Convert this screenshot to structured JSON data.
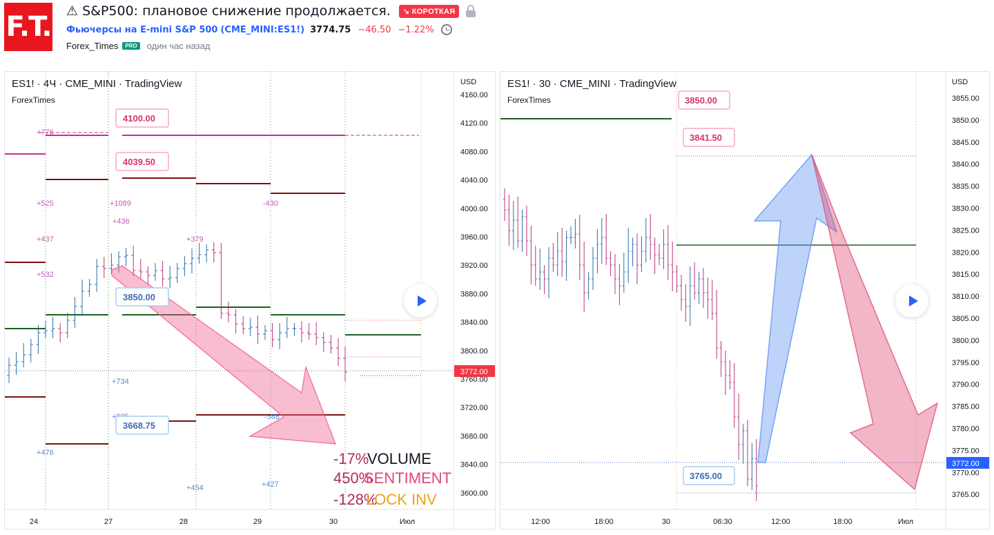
{
  "header": {
    "logo": "F.T.",
    "title": "⚠ S&P500: плановое снижение продолжается.",
    "badge": "↘ КОРОТКАЯ",
    "symbol_name": "Фьючерсы на E-mini S&P 500",
    "symbol_code": "(CME_MINI:ES1!)",
    "price": "3774.75",
    "change": "−46.50",
    "change_pct": "−1.22%",
    "author": "Forex_Times",
    "pro": "PRO",
    "time_ago": "один час назад"
  },
  "left_chart": {
    "title": "ES1! · 4Ч · CME_MINI · TradingView",
    "subtitle": "ForexTimes",
    "currency": "USD",
    "price_ticks": [
      "4160.00",
      "4120.00",
      "4080.00",
      "4040.00",
      "4000.00",
      "3960.00",
      "3920.00",
      "3880.00",
      "3840.00",
      "3800.00",
      "3760.00",
      "3720.00",
      "3680.00",
      "3640.00",
      "3600.00"
    ],
    "last_price": "3772.00",
    "time_ticks": [
      "24",
      "27",
      "28",
      "29",
      "30",
      "Июл"
    ],
    "callouts": [
      "4100.00",
      "4039.50",
      "3850.00",
      "3668.75"
    ],
    "annotations": [
      "+776",
      "+525",
      "+1089",
      "+436",
      "+437",
      "+379",
      "-430",
      "+532",
      "+734",
      "+925",
      "-588",
      "+476",
      "+454",
      "+427"
    ],
    "legend": [
      {
        "value": "-17%",
        "label": "VOLUME"
      },
      {
        "value": "450%",
        "label": "SENTIMENT"
      },
      {
        "value": "-128%",
        "label": "LOCK INV"
      }
    ]
  },
  "right_chart": {
    "title": "ES1! · 30 · CME_MINI · TradingView",
    "subtitle": "ForexTimes",
    "currency": "USD",
    "price_ticks": [
      "3855.00",
      "3850.00",
      "3845.00",
      "3840.00",
      "3835.00",
      "3830.00",
      "3825.00",
      "3820.00",
      "3815.00",
      "3810.00",
      "3805.00",
      "3800.00",
      "3795.00",
      "3790.00",
      "3785.00",
      "3780.00",
      "3775.00",
      "3770.00",
      "3765.00"
    ],
    "last_price": "3772.00",
    "time_ticks": [
      "12:00",
      "18:00",
      "30",
      "06:30",
      "12:00",
      "18:00",
      "Июл"
    ],
    "callouts": [
      "3850.00",
      "3841.50",
      "3765.00"
    ]
  },
  "colors": {
    "red": "#f23645",
    "blue": "#2962ff",
    "pink": "#e91e63",
    "green": "#1b5e20",
    "darkred": "#7b0f0f",
    "magenta": "#c2308f"
  }
}
